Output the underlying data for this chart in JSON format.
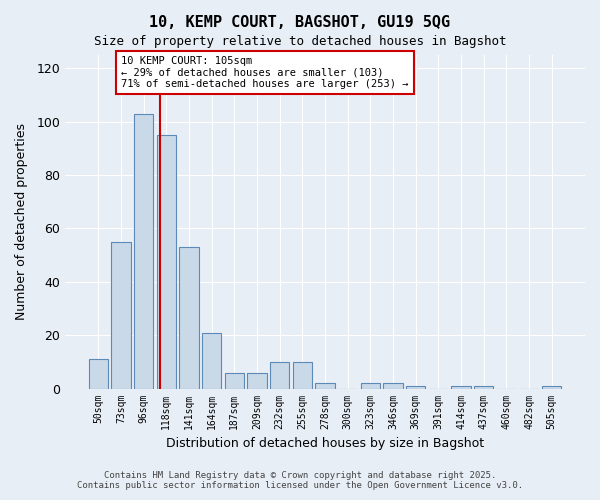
{
  "title": "10, KEMP COURT, BAGSHOT, GU19 5QG",
  "subtitle": "Size of property relative to detached houses in Bagshot",
  "xlabel": "Distribution of detached houses by size in Bagshot",
  "ylabel": "Number of detached properties",
  "bar_color": "#c9d9e8",
  "bar_edge_color": "#5a8ab5",
  "background_color": "#e8eef5",
  "grid_color": "#ffffff",
  "categories": [
    "50sqm",
    "73sqm",
    "96sqm",
    "118sqm",
    "141sqm",
    "164sqm",
    "187sqm",
    "209sqm",
    "232sqm",
    "255sqm",
    "278sqm",
    "300sqm",
    "323sqm",
    "346sqm",
    "369sqm",
    "391sqm",
    "414sqm",
    "437sqm",
    "460sqm",
    "482sqm",
    "505sqm"
  ],
  "values": [
    11,
    55,
    103,
    95,
    53,
    21,
    6,
    6,
    10,
    10,
    2,
    0,
    2,
    2,
    1,
    0,
    1,
    1,
    0,
    0,
    1
  ],
  "ylim": [
    0,
    125
  ],
  "yticks": [
    0,
    20,
    40,
    60,
    80,
    100,
    120
  ],
  "property_line_x": 2.7,
  "property_line_color": "#cc0000",
  "annotation_text": "10 KEMP COURT: 105sqm\n← 29% of detached houses are smaller (103)\n71% of semi-detached houses are larger (253) →",
  "annotation_box_color": "#ffffff",
  "annotation_box_edge_color": "#cc0000",
  "footnote1": "Contains HM Land Registry data © Crown copyright and database right 2025.",
  "footnote2": "Contains public sector information licensed under the Open Government Licence v3.0."
}
